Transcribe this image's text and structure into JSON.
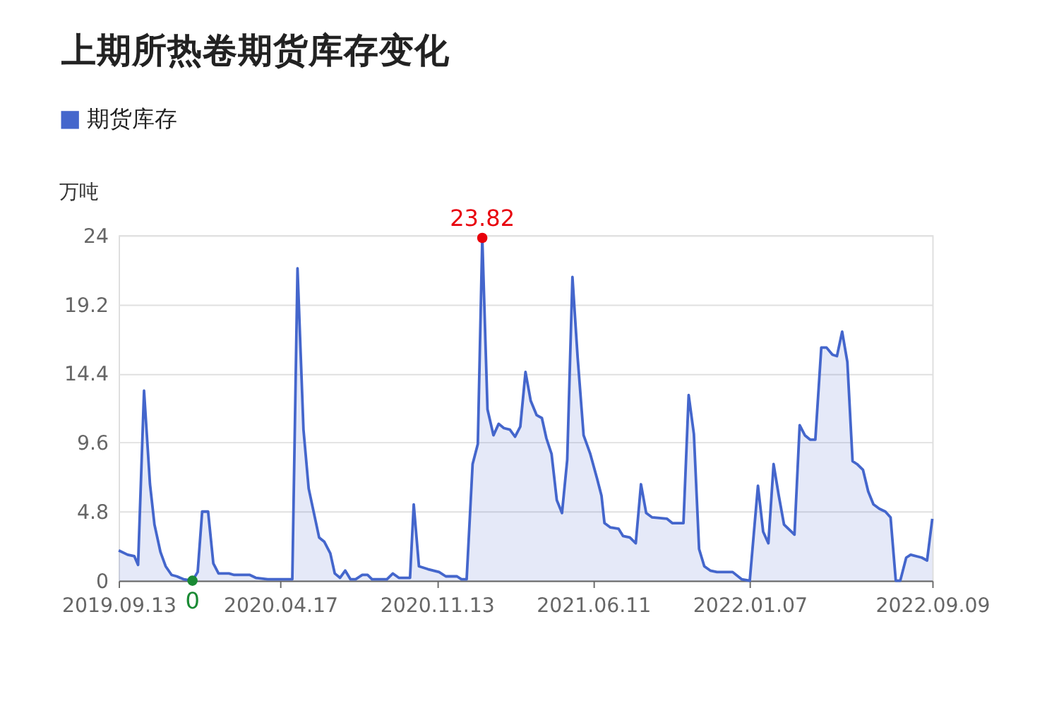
{
  "chart_data": {
    "type": "area",
    "title": "上期所热卷期货库存变化",
    "ylabel": "万吨",
    "legend": "top left",
    "grid": "y",
    "marker": "none",
    "xlim": [
      "2019-09-13",
      "2022-09-09"
    ],
    "xticks": [
      {
        "value": "2019-09-13",
        "label": "2019.09.13"
      },
      {
        "value": "2020-04-17",
        "label": "2020.04.17"
      },
      {
        "value": "2020-11-13",
        "label": "2020.11.13"
      },
      {
        "value": "2021-06-11",
        "label": "2021.06.11"
      },
      {
        "value": "2022-01-07",
        "label": "2022.01.07"
      },
      {
        "value": "2022-09-09",
        "label": "2022.09.09"
      }
    ],
    "ylim": [
      0,
      24
    ],
    "yticks": [
      0,
      4.8,
      9.6,
      14.4,
      19.2,
      24
    ],
    "x": [
      "2019-09-13",
      "2019-09-25",
      "2019-10-04",
      "2019-10-09",
      "2019-10-17",
      "2019-10-25",
      "2019-10-31",
      "2019-11-08",
      "2019-11-15",
      "2019-11-23",
      "2019-11-30",
      "2019-12-09",
      "2019-12-21",
      "2019-12-28",
      "2020-01-03",
      "2020-01-11",
      "2020-01-18",
      "2020-01-25",
      "2020-02-08",
      "2020-02-15",
      "2020-03-07",
      "2020-03-15",
      "2020-03-31",
      "2020-05-03",
      "2020-05-10",
      "2020-05-18",
      "2020-05-25",
      "2020-06-08",
      "2020-06-15",
      "2020-06-23",
      "2020-06-29",
      "2020-07-06",
      "2020-07-13",
      "2020-07-20",
      "2020-07-27",
      "2020-08-05",
      "2020-08-12",
      "2020-08-18",
      "2020-09-07",
      "2020-09-15",
      "2020-09-23",
      "2020-10-08",
      "2020-10-13",
      "2020-10-20",
      "2020-11-01",
      "2020-11-16",
      "2020-11-25",
      "2020-12-10",
      "2020-12-16",
      "2020-12-23",
      "2020-12-31",
      "2021-01-07",
      "2021-01-13",
      "2021-01-20",
      "2021-01-28",
      "2021-02-04",
      "2021-02-11",
      "2021-02-19",
      "2021-02-26",
      "2021-03-05",
      "2021-03-12",
      "2021-03-19",
      "2021-03-27",
      "2021-04-03",
      "2021-04-09",
      "2021-04-16",
      "2021-04-23",
      "2021-04-30",
      "2021-05-07",
      "2021-05-14",
      "2021-05-21",
      "2021-05-29",
      "2021-06-07",
      "2021-06-16",
      "2021-06-22",
      "2021-06-26",
      "2021-07-04",
      "2021-07-15",
      "2021-07-21",
      "2021-07-30",
      "2021-08-07",
      "2021-08-14",
      "2021-08-21",
      "2021-08-29",
      "2021-09-18",
      "2021-09-25",
      "2021-10-10",
      "2021-10-17",
      "2021-10-24",
      "2021-10-31",
      "2021-11-07",
      "2021-11-15",
      "2021-11-24",
      "2021-12-15",
      "2021-12-27",
      "2022-01-07",
      "2022-01-18",
      "2022-01-25",
      "2022-02-01",
      "2022-02-08",
      "2022-02-15",
      "2022-02-22",
      "2022-03-08",
      "2022-03-15",
      "2022-03-22",
      "2022-03-29",
      "2022-04-05",
      "2022-04-13",
      "2022-04-20",
      "2022-04-28",
      "2022-05-04",
      "2022-05-11",
      "2022-05-18",
      "2022-05-25",
      "2022-05-31",
      "2022-06-08",
      "2022-06-15",
      "2022-06-22",
      "2022-06-30",
      "2022-07-08",
      "2022-07-15",
      "2022-07-22",
      "2022-07-28",
      "2022-08-05",
      "2022-08-11",
      "2022-08-26",
      "2022-09-02",
      "2022-09-09"
    ],
    "series": [
      {
        "name": "期货库存",
        "color": "#4466cc",
        "values": [
          2.1,
          1.8,
          1.7,
          1.1,
          13.2,
          6.7,
          3.9,
          2.0,
          1.0,
          0.4,
          0.3,
          0.1,
          0,
          0.6,
          4.8,
          4.8,
          1.2,
          0.5,
          0.5,
          0.4,
          0.4,
          0.2,
          0.1,
          0.1,
          21.7,
          10.5,
          6.4,
          3.0,
          2.7,
          1.9,
          0.5,
          0.2,
          0.7,
          0.1,
          0.1,
          0.4,
          0.4,
          0.1,
          0.1,
          0.5,
          0.2,
          0.2,
          5.3,
          1.0,
          0.8,
          0.6,
          0.3,
          0.3,
          0.1,
          0.1,
          8.1,
          9.5,
          23.82,
          11.9,
          10.1,
          10.9,
          10.6,
          10.5,
          10.0,
          10.7,
          14.5,
          12.5,
          11.5,
          11.3,
          9.9,
          8.8,
          5.6,
          4.7,
          8.4,
          21.1,
          15.5,
          10.1,
          8.8,
          7.1,
          5.9,
          4.0,
          3.7,
          3.6,
          3.1,
          3.0,
          2.6,
          6.7,
          4.7,
          4.4,
          4.3,
          4.0,
          4.0,
          12.9,
          10.2,
          2.2,
          1.0,
          0.7,
          0.6,
          0.6,
          0.1,
          0,
          6.6,
          3.4,
          2.6,
          8.1,
          5.9,
          3.9,
          3.2,
          10.8,
          10.1,
          9.8,
          9.8,
          16.2,
          16.2,
          15.7,
          15.6,
          17.3,
          15.2,
          8.3,
          8.1,
          7.7,
          6.2,
          5.3,
          5.0,
          4.8,
          4.4,
          0,
          0,
          1.6,
          1.8,
          1.6,
          1.4,
          4.3
        ]
      }
    ],
    "annotations": [
      {
        "text": "23.82",
        "x": "2021-01-13",
        "y": 23.82
      },
      {
        "text": "0",
        "x": "2019-12-21",
        "y": 0
      }
    ]
  }
}
